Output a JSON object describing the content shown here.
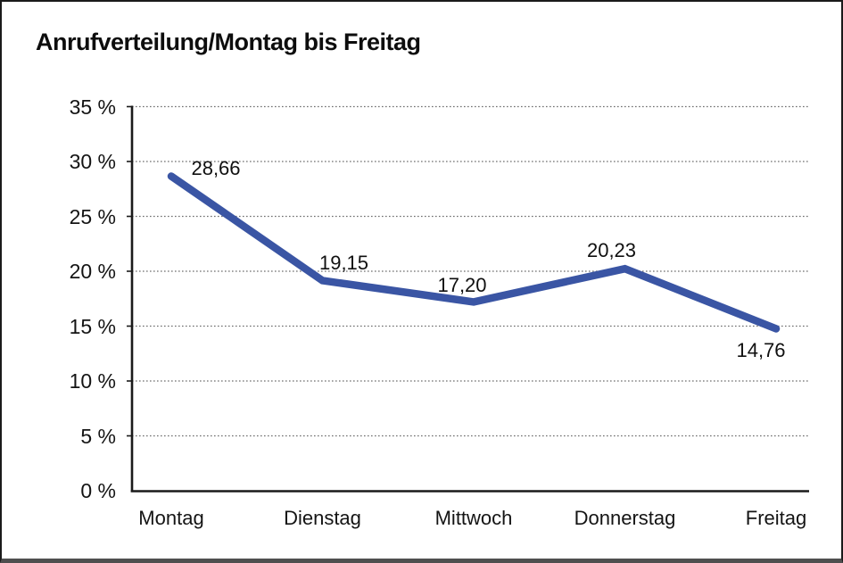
{
  "title": "Anrufverteilung/Montag bis Freitag",
  "chart_data": {
    "type": "line",
    "title": "Anrufverteilung/Montag bis Freitag",
    "categories": [
      "Montag",
      "Dienstag",
      "Mittwoch",
      "Donnerstag",
      "Freitag"
    ],
    "values": [
      28.66,
      19.15,
      17.2,
      20.23,
      14.76
    ],
    "value_labels": [
      "28,66",
      "19,15",
      "17,20",
      "20,23",
      "14,76"
    ],
    "xlabel": "",
    "ylabel": "",
    "ylim": [
      0,
      35
    ],
    "ytick_step": 5,
    "ytick_labels": [
      "0 %",
      "5 %",
      "10 %",
      "15 %",
      "20 %",
      "25 %",
      "30 %",
      "35 %"
    ],
    "grid": "horizontal-dotted",
    "legend_position": "none",
    "colors": {
      "line": "#3A55A4",
      "axis": "#1a1a1a",
      "gridline": "#6e6e6e",
      "text": "#141414"
    }
  }
}
